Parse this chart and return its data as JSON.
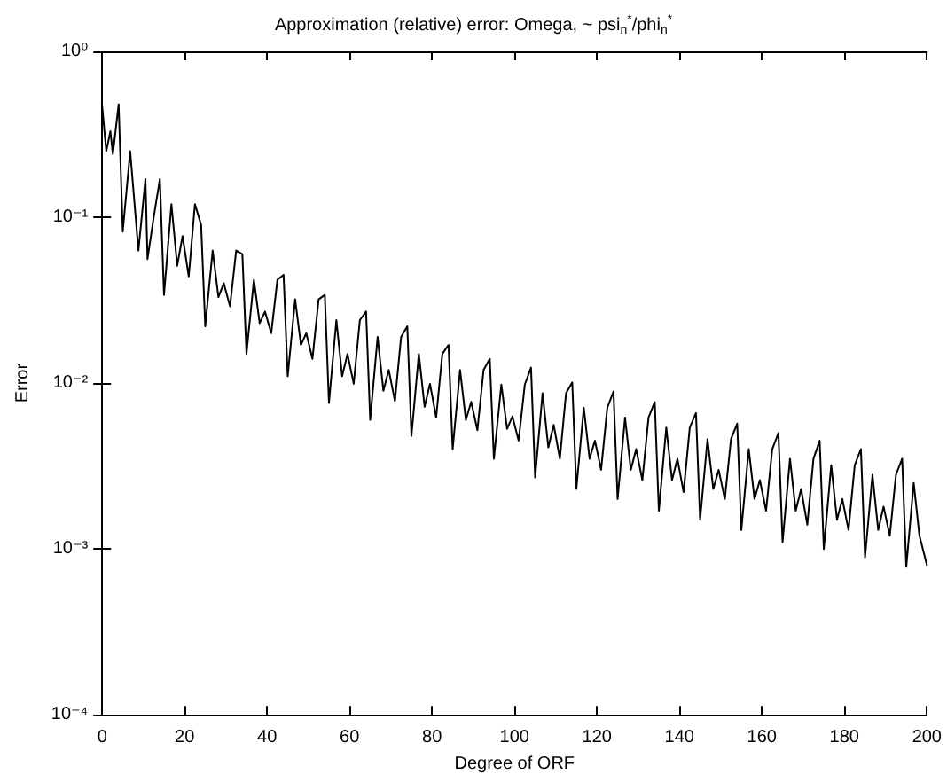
{
  "chart_data": {
    "type": "line",
    "title": "Approximation (relative) error: Omega, ~ psi$_{n}$$^{*}$/phi$_{n}$$^{*}$",
    "xlabel": "Degree of ORF",
    "ylabel": "Error",
    "x": [
      0,
      1,
      2,
      2.6,
      4,
      5,
      6.8,
      8.8,
      10.5,
      11,
      12.5,
      14,
      15,
      16.8,
      18.2,
      19.5,
      21,
      22.5,
      24,
      25,
      26.8,
      28.2,
      29.5,
      31,
      32.5,
      34,
      35,
      36.8,
      38.2,
      39.5,
      41,
      42.5,
      44,
      45,
      46.8,
      48.2,
      49.5,
      51,
      52.5,
      54,
      55,
      56.8,
      58.2,
      59.5,
      61,
      62.5,
      64,
      65,
      66.8,
      68.2,
      69.5,
      71,
      72.5,
      74,
      75,
      76.8,
      78.2,
      79.5,
      81,
      82.5,
      84,
      85,
      86.8,
      88.2,
      89.5,
      91,
      92.5,
      94,
      95,
      96.8,
      98.2,
      99.5,
      101,
      102.5,
      104,
      105,
      106.8,
      108.2,
      109.5,
      111,
      112.5,
      114,
      115,
      116.8,
      118.2,
      119.5,
      121,
      122.5,
      124,
      125,
      126.8,
      128.2,
      129.5,
      131,
      132.5,
      134,
      135,
      136.8,
      138.2,
      139.5,
      141,
      142.5,
      144,
      145,
      146.8,
      148.2,
      149.5,
      151,
      152.5,
      154,
      155,
      156.8,
      158.2,
      159.5,
      161,
      162.5,
      164,
      165,
      166.8,
      168.2,
      169.5,
      171,
      172.5,
      174,
      175,
      176.8,
      178.2,
      179.5,
      181,
      182.5,
      184,
      185,
      186.8,
      188.2,
      189.5,
      191,
      192.5,
      194,
      195,
      196.8,
      198.2,
      200
    ],
    "series": [
      {
        "color": "#000000",
        "values": [
          0.47,
          0.25,
          0.33,
          0.24,
          0.48,
          0.082,
          0.25,
          0.063,
          0.17,
          0.056,
          0.1,
          0.17,
          0.034,
          0.12,
          0.051,
          0.077,
          0.044,
          0.12,
          0.09,
          0.022,
          0.063,
          0.033,
          0.04,
          0.029,
          0.063,
          0.06,
          0.015,
          0.042,
          0.023,
          0.027,
          0.02,
          0.042,
          0.045,
          0.011,
          0.032,
          0.017,
          0.02,
          0.014,
          0.032,
          0.034,
          0.0076,
          0.024,
          0.011,
          0.015,
          0.0099,
          0.024,
          0.027,
          0.006,
          0.019,
          0.009,
          0.012,
          0.0078,
          0.019,
          0.022,
          0.0048,
          0.015,
          0.0072,
          0.0099,
          0.0062,
          0.015,
          0.017,
          0.004,
          0.012,
          0.006,
          0.0077,
          0.0052,
          0.012,
          0.014,
          0.0035,
          0.0098,
          0.0053,
          0.0063,
          0.0045,
          0.0098,
          0.0124,
          0.0027,
          0.0087,
          0.0041,
          0.0056,
          0.0035,
          0.0087,
          0.0101,
          0.0023,
          0.0071,
          0.0035,
          0.0045,
          0.003,
          0.0071,
          0.0089,
          0.002,
          0.0062,
          0.003,
          0.004,
          0.0026,
          0.0062,
          0.0077,
          0.0017,
          0.0054,
          0.0026,
          0.0035,
          0.0022,
          0.0054,
          0.0066,
          0.0015,
          0.0046,
          0.0023,
          0.003,
          0.002,
          0.0046,
          0.0057,
          0.0013,
          0.004,
          0.002,
          0.0026,
          0.0017,
          0.004,
          0.005,
          0.0011,
          0.0035,
          0.0017,
          0.0023,
          0.0014,
          0.0035,
          0.0045,
          0.001,
          0.0032,
          0.0015,
          0.002,
          0.0013,
          0.0032,
          0.004,
          0.00089,
          0.0028,
          0.0013,
          0.0018,
          0.0012,
          0.0028,
          0.0035,
          0.00078,
          0.0025,
          0.0012,
          0.0008
        ]
      }
    ],
    "xlim": [
      0,
      200
    ],
    "xticks": [
      0,
      20,
      40,
      60,
      80,
      100,
      120,
      140,
      160,
      180,
      200
    ],
    "ylim": [
      0.0001,
      1
    ],
    "yticks": [
      {
        "value": 0.0001,
        "label": "10⁻⁴"
      },
      {
        "value": 0.001,
        "label": "10⁻³"
      },
      {
        "value": 0.01,
        "label": "10⁻²"
      },
      {
        "value": 0.1,
        "label": "10⁻¹"
      },
      {
        "value": 1,
        "label": "10⁰"
      }
    ],
    "log": true,
    "grid": false,
    "marker": "none",
    "line_style": "solid"
  }
}
